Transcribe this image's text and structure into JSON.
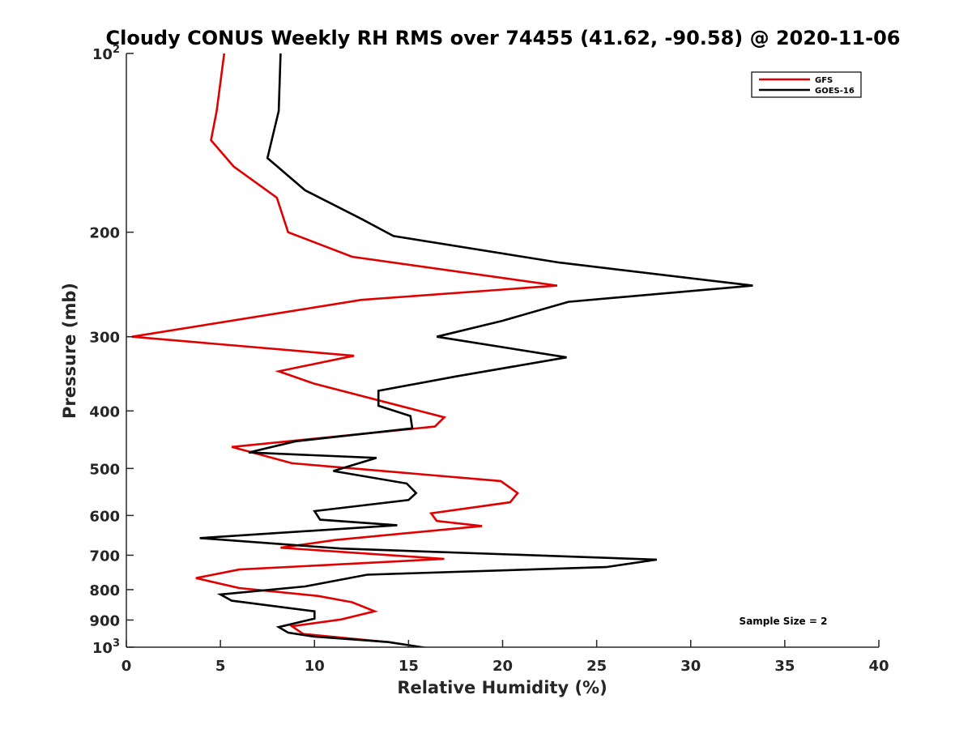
{
  "chart_data": {
    "type": "line",
    "title": "Cloudy CONUS Weekly RH RMS over 74455 (41.62, -90.58) @ 2020-11-06",
    "xlabel": "Relative Humidity (%)",
    "ylabel": "Pressure (mb)",
    "xlim": [
      0,
      40
    ],
    "ylim": [
      100,
      1000
    ],
    "y_scale": "log",
    "y_reversed": true,
    "grid": false,
    "legend_position": "top-right",
    "x_ticks": [
      "0",
      "5",
      "10",
      "15",
      "20",
      "25",
      "30",
      "35",
      "40"
    ],
    "y_ticks": [
      {
        "value": 100,
        "label": "10",
        "exp": "2"
      },
      {
        "value": 200,
        "label": "200"
      },
      {
        "value": 300,
        "label": "300"
      },
      {
        "value": 400,
        "label": "400"
      },
      {
        "value": 500,
        "label": "500"
      },
      {
        "value": 600,
        "label": "600"
      },
      {
        "value": 700,
        "label": "700"
      },
      {
        "value": 800,
        "label": "800"
      },
      {
        "value": 900,
        "label": "900"
      },
      {
        "value": 1000,
        "label": "10",
        "exp": "3"
      }
    ],
    "annotation": "Sample Size = 2",
    "series": [
      {
        "name": "GFS",
        "color": "#e00000",
        "x": [
          5.2,
          4.8,
          4.5,
          5.7,
          8.0,
          8.6,
          12.0,
          22.9,
          12.5,
          0.3,
          12.1,
          8.1,
          10.0,
          16.9,
          16.4,
          5.6,
          8.8,
          19.9,
          20.8,
          20.4,
          16.2,
          16.5,
          18.9,
          11.1,
          8.2,
          16.9,
          6.0,
          3.7,
          6.0,
          10.2,
          12.0,
          13.2,
          11.4,
          8.8,
          9.4,
          13.8
        ],
        "y": [
          100,
          125,
          140,
          155,
          175,
          200,
          220,
          246,
          260,
          300,
          323,
          343,
          360,
          410,
          425,
          460,
          490,
          525,
          550,
          570,
          595,
          613,
          625,
          660,
          680,
          710,
          740,
          765,
          795,
          820,
          840,
          870,
          898,
          922,
          950,
          980
        ]
      },
      {
        "name": "GOES-16",
        "color": "#000000",
        "x": [
          8.2,
          8.1,
          7.5,
          9.5,
          12.5,
          14.2,
          23.0,
          33.3,
          23.5,
          20.0,
          16.5,
          23.4,
          17.5,
          13.4,
          13.4,
          15.1,
          15.2,
          9.0,
          6.5,
          13.3,
          11.0,
          14.9,
          15.4,
          15.0,
          10.0,
          10.3,
          14.4,
          3.9,
          11.4,
          28.2,
          25.5,
          12.8,
          9.5,
          5.0,
          5.6,
          10.0,
          10.0,
          8.1,
          8.6,
          10.0,
          13.9,
          16.6
        ],
        "y": [
          100,
          125,
          150,
          170,
          190,
          203,
          225,
          246,
          262,
          282,
          300,
          325,
          350,
          370,
          392,
          408,
          428,
          450,
          470,
          480,
          505,
          530,
          550,
          565,
          590,
          610,
          623,
          655,
          682,
          712,
          733,
          755,
          790,
          815,
          835,
          870,
          895,
          925,
          945,
          960,
          980,
          1010
        ]
      }
    ]
  }
}
